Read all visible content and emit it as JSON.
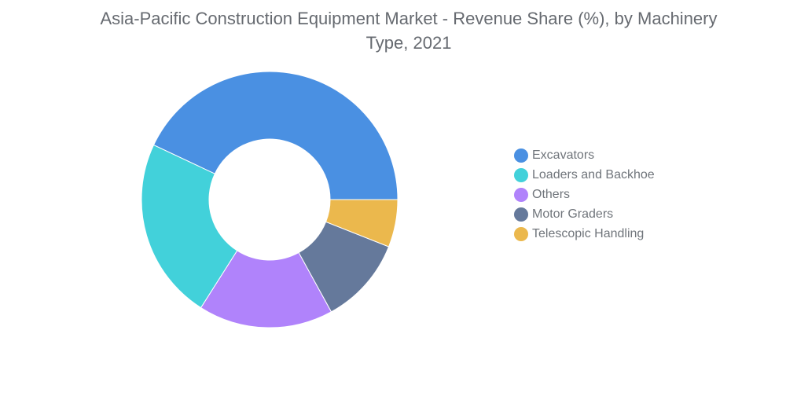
{
  "chart_data": {
    "type": "pie",
    "title": "Asia-Pacific Construction Equipment Market - Revenue Share (%), by Machinery Type, 2021",
    "donut": true,
    "categories": [
      "Excavators",
      "Loaders and Backhoe",
      "Others",
      "Motor Graders",
      "Telescopic Handling"
    ],
    "values": [
      43,
      23,
      17,
      11,
      6
    ],
    "colors": [
      "#4a90e2",
      "#42d1da",
      "#b083fb",
      "#65799b",
      "#ebb84d"
    ],
    "legend_position": "right"
  },
  "legend": {
    "items": [
      {
        "label": "Excavators",
        "color": "#4a90e2"
      },
      {
        "label": "Loaders and Backhoe",
        "color": "#42d1da"
      },
      {
        "label": "Others",
        "color": "#b083fb"
      },
      {
        "label": "Motor Graders",
        "color": "#65799b"
      },
      {
        "label": "Telescopic Handling",
        "color": "#ebb84d"
      }
    ]
  }
}
